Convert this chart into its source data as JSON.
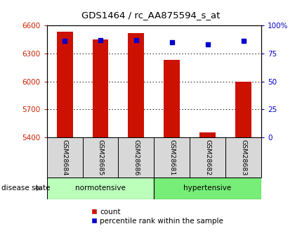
{
  "title": "GDS1464 / rc_AA875594_s_at",
  "samples": [
    "GSM28684",
    "GSM28685",
    "GSM28686",
    "GSM28681",
    "GSM28682",
    "GSM28683"
  ],
  "counts": [
    6530,
    6450,
    6520,
    6230,
    5450,
    6000
  ],
  "percentiles": [
    86,
    87,
    87,
    85,
    83,
    86
  ],
  "ylim_left": [
    5400,
    6600
  ],
  "ylim_right": [
    0,
    100
  ],
  "yticks_left": [
    5400,
    5700,
    6000,
    6300,
    6600
  ],
  "yticks_right": [
    0,
    25,
    50,
    75,
    100
  ],
  "ytick_labels_right": [
    "0",
    "25",
    "50",
    "75",
    "100%"
  ],
  "bar_color": "#cc1100",
  "dot_color": "#0000cc",
  "group1_label": "normotensive",
  "group2_label": "hypertensive",
  "group1_color": "#bbffbb",
  "group2_color": "#77ee77",
  "legend_count_label": "count",
  "legend_pct_label": "percentile rank within the sample",
  "disease_state_label": "disease state",
  "bar_width": 0.45,
  "tick_label_color_left": "#cc2200",
  "tick_label_color_right": "#0000cc",
  "background_plot": "#ffffff",
  "background_label": "#d8d8d8"
}
